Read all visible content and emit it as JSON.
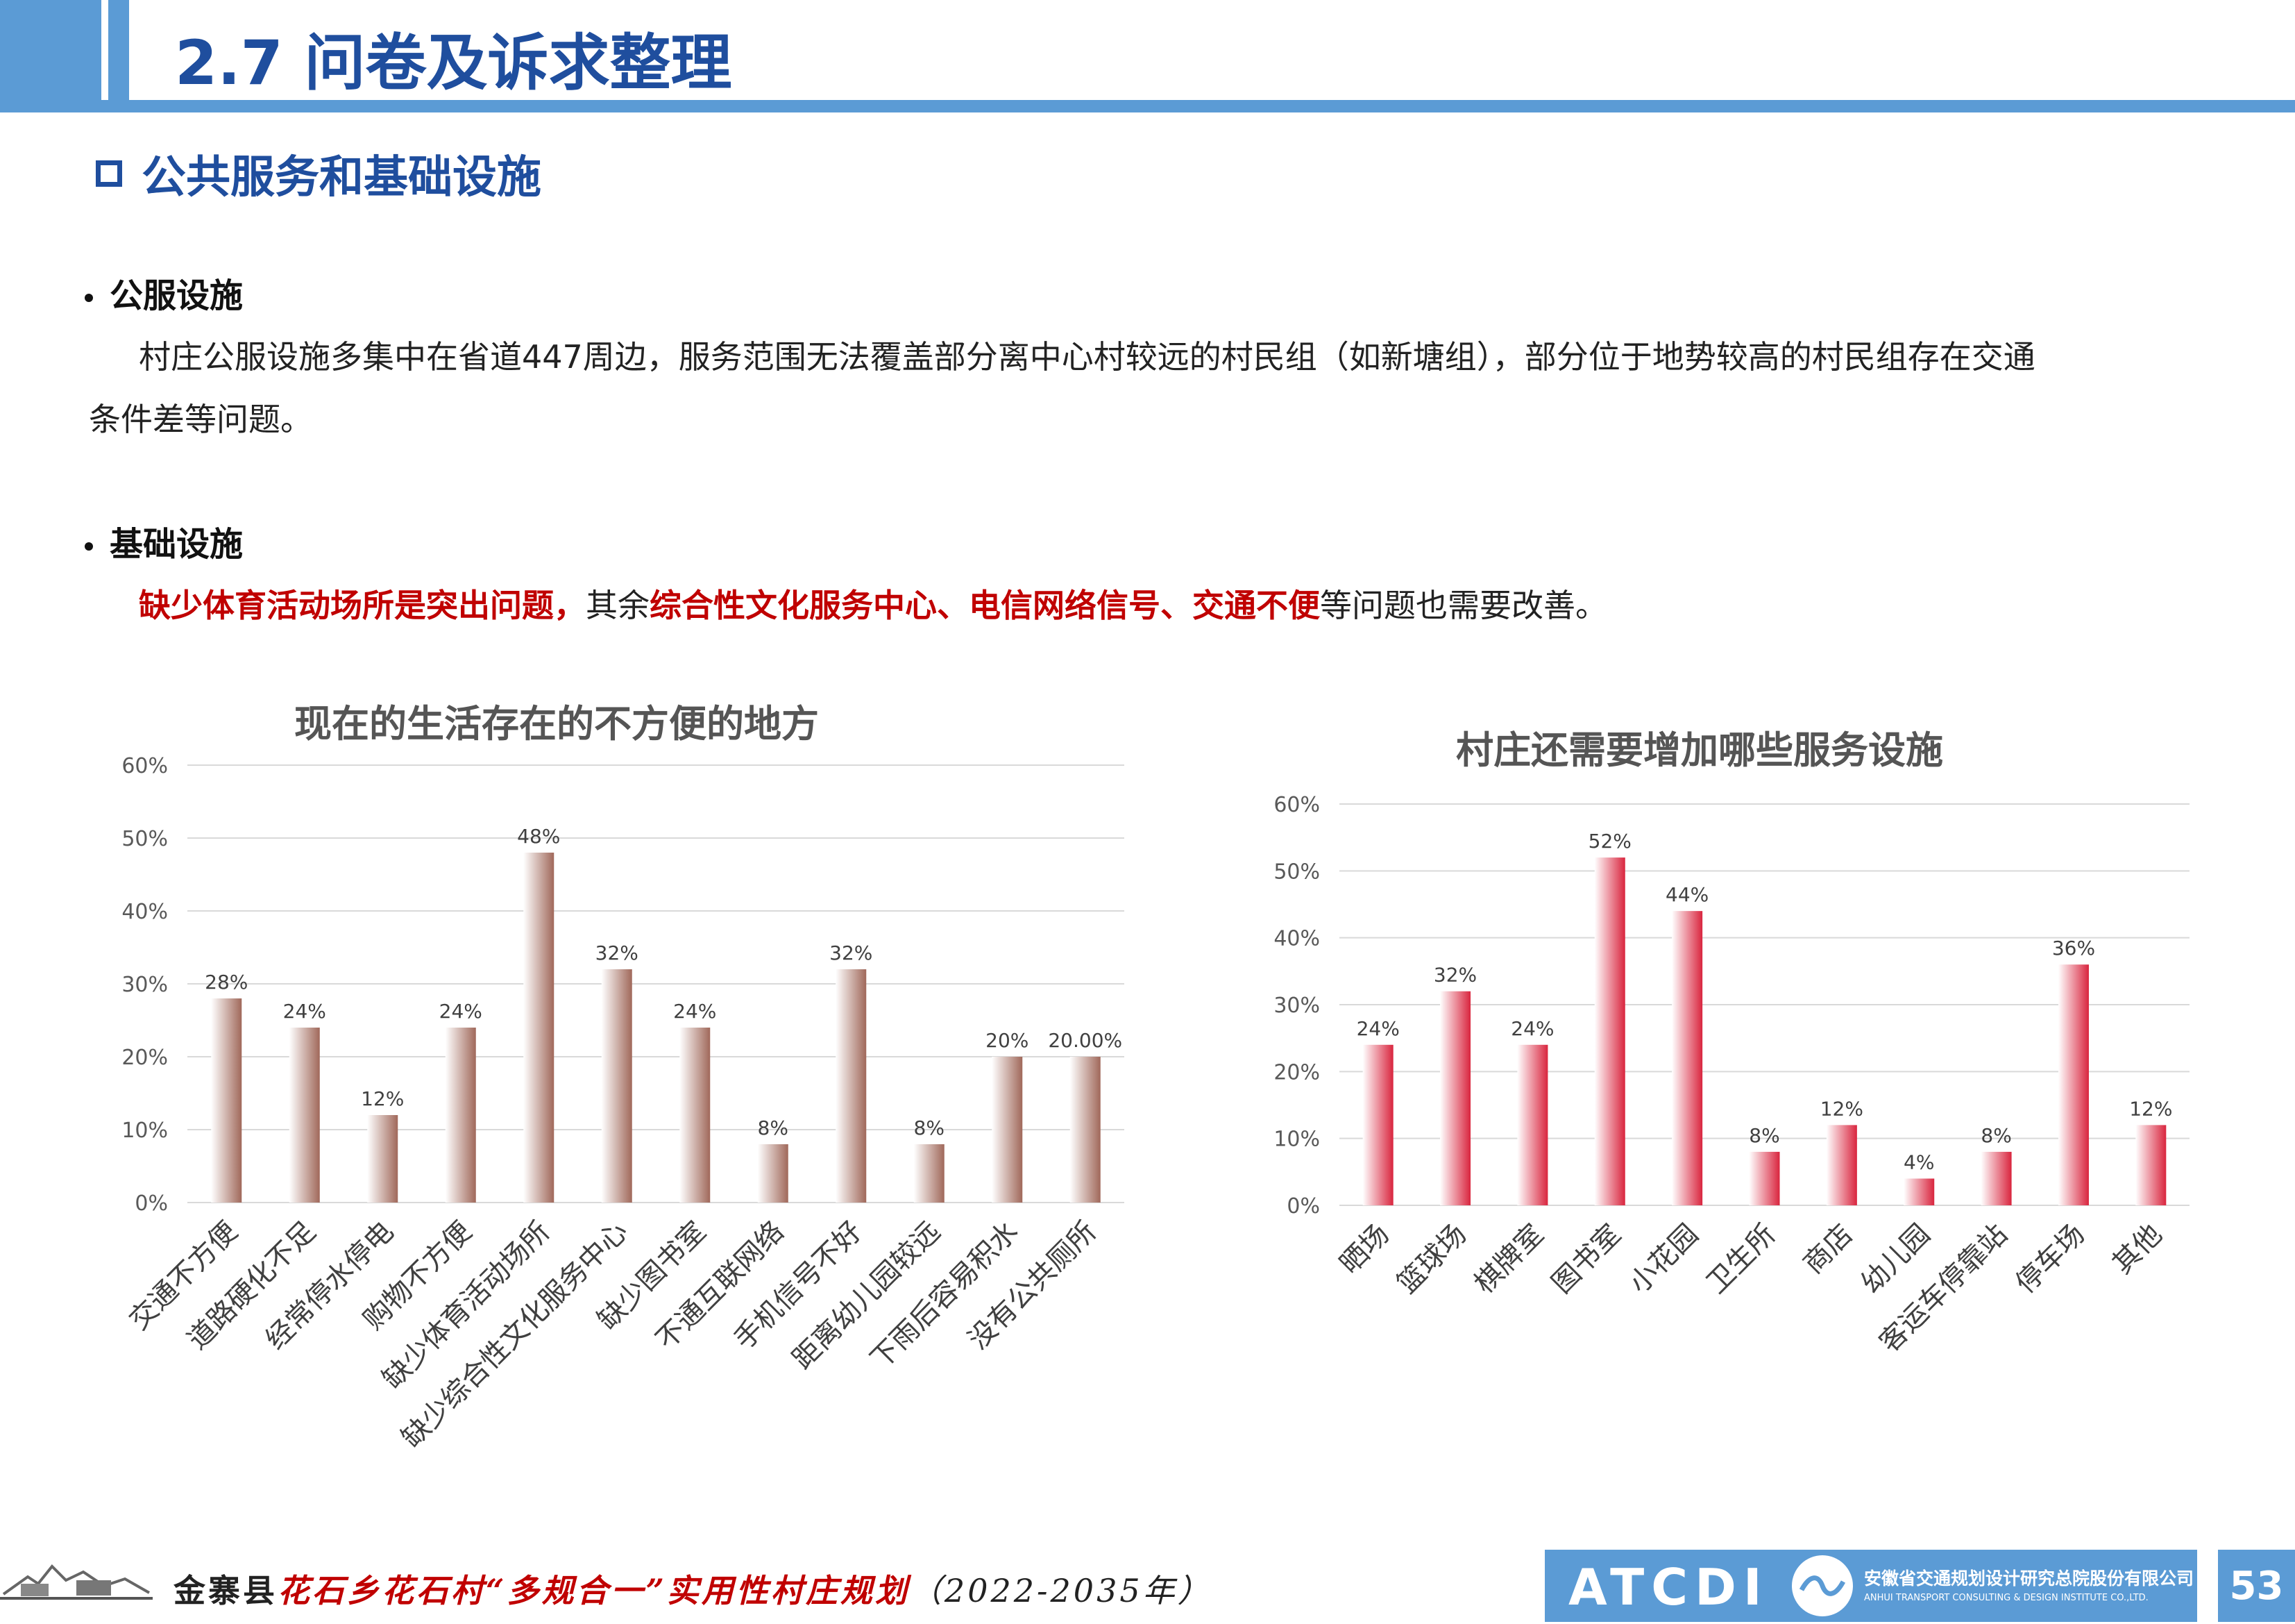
{
  "header": {
    "title": "2.7 问卷及诉求整理"
  },
  "section": {
    "title": "公共服务和基础设施"
  },
  "public_facilities": {
    "heading": "公服设施",
    "line1": "村庄公服设施多集中在省道447周边，服务范围无法覆盖部分离中心村较远的村民组（如新塘组），部分位于地势较高的村民组存在交通",
    "line2": "条件差等问题。"
  },
  "infrastructure": {
    "heading": "基础设施",
    "part1": "缺少体育活动场所是突出问题，",
    "part2": "其余",
    "part3": "综合性文化服务中心、电信网络信号、交通不便",
    "part4": "等问题也需要改善。"
  },
  "chart_data": [
    {
      "type": "bar",
      "title": "现在的生活存在的不方便的地方",
      "categories": [
        "交通不方便",
        "道路硬化不足",
        "经常停水停电",
        "购物不方便",
        "缺少体育活动场所",
        "缺少综合性文化服务中心",
        "缺少图书室",
        "不通互联网络",
        "手机信号不好",
        "距离幼儿园较远",
        "下雨后容易积水",
        "没有公共厕所"
      ],
      "values": [
        28,
        24,
        12,
        24,
        48,
        32,
        24,
        8,
        32,
        8,
        20,
        20
      ],
      "value_labels": [
        "28%",
        "24%",
        "12%",
        "24%",
        "48%",
        "32%",
        "24%",
        "8%",
        "32%",
        "8%",
        "20%",
        "20.00%"
      ],
      "ylim": [
        0,
        60
      ],
      "yticks": [
        "0%",
        "10%",
        "20%",
        "30%",
        "40%",
        "50%",
        "60%"
      ],
      "grid": true,
      "bar_color": "#a0685a"
    },
    {
      "type": "bar",
      "title": "村庄还需要增加哪些服务设施",
      "categories": [
        "晒场",
        "篮球场",
        "棋牌室",
        "图书室",
        "小花园",
        "卫生所",
        "商店",
        "幼儿园",
        "客运车停靠站",
        "停车场",
        "其他"
      ],
      "values": [
        24,
        32,
        24,
        52,
        44,
        8,
        12,
        4,
        8,
        36,
        12
      ],
      "value_labels": [
        "24%",
        "32%",
        "24%",
        "52%",
        "44%",
        "8%",
        "12%",
        "4%",
        "8%",
        "36%",
        "12%"
      ],
      "ylim": [
        0,
        60
      ],
      "yticks": [
        "0%",
        "10%",
        "20%",
        "30%",
        "40%",
        "50%",
        "60%"
      ],
      "grid": true,
      "bar_color": "#d9253e"
    }
  ],
  "footer": {
    "county": "金寨县",
    "village": "花石乡花石村",
    "plan": "“多规合一”实用性村庄规划",
    "years": "（2022-2035年）",
    "logo_text": "ATCDI",
    "company_cn": "安徽省交通规划设计研究总院股份有限公司",
    "company_en": "ANHUI TRANSPORT CONSULTING & DESIGN INSTITUTE CO.,LTD.",
    "page_number": "53"
  }
}
